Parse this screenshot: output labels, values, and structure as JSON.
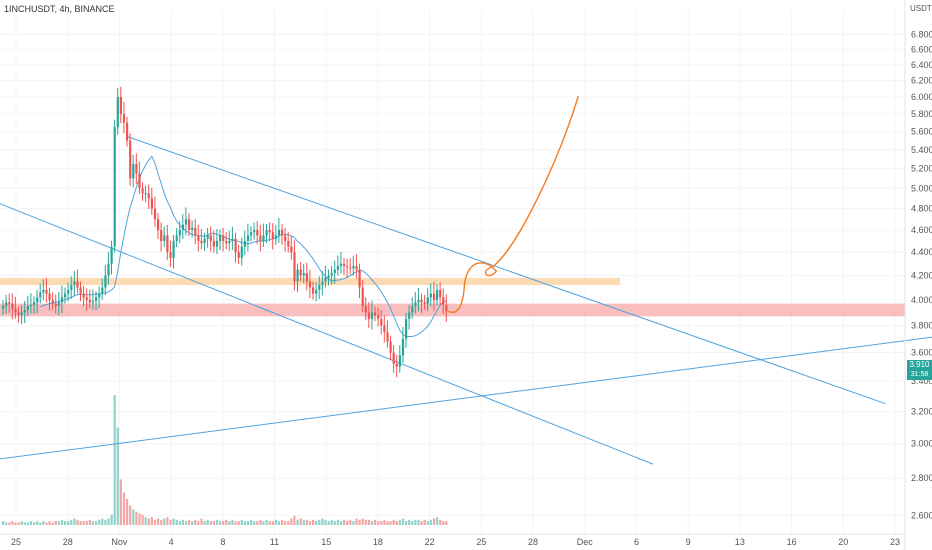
{
  "header": {
    "symbol_label": "1INCHUSDT, 4h, BINANCE",
    "currency": "USDT"
  },
  "price_tag": {
    "price": "3.910",
    "countdown": "31:58"
  },
  "colors": {
    "up": "#26a69a",
    "down": "#ef5350",
    "trendline": "#4fa3e0",
    "projection": "#f57c20",
    "resistance_zone": "#fbd3a6",
    "support_zone": "#f8b4b4",
    "ma": "#4fa3e0",
    "axis_text": "#555555"
  },
  "chart_data": {
    "type": "candlestick",
    "title": "1INCHUSDT, 4h, BINANCE",
    "ylabel": "USDT",
    "y_scale": "log",
    "ylim": [
      2.55,
      7.0
    ],
    "y_ticks": [
      "6.800",
      "6.600",
      "6.400",
      "6.200",
      "6.000",
      "5.800",
      "5.600",
      "5.400",
      "5.200",
      "5.000",
      "4.800",
      "4.600",
      "4.400",
      "4.200",
      "4.000",
      "3.800",
      "3.600",
      "3.400",
      "3.200",
      "3.000",
      "2.800",
      "2.600"
    ],
    "x_ticks": [
      "25",
      "28",
      "Nov",
      "4",
      "8",
      "11",
      "15",
      "18",
      "22",
      "25",
      "28",
      "Dec",
      "6",
      "9",
      "13",
      "16",
      "20",
      "23"
    ],
    "last_price": 3.91,
    "closes": [
      3.95,
      3.98,
      3.97,
      3.93,
      3.9,
      3.88,
      3.9,
      3.92,
      3.95,
      3.96,
      3.98,
      4.02,
      4.06,
      4.08,
      4.05,
      4.0,
      3.97,
      3.95,
      3.98,
      4.02,
      4.05,
      4.08,
      4.12,
      4.15,
      4.1,
      4.05,
      4.02,
      4.0,
      3.98,
      3.99,
      4.02,
      4.05,
      4.1,
      4.2,
      4.3,
      4.45,
      5.65,
      6.0,
      5.8,
      5.7,
      5.5,
      5.1,
      5.25,
      5.15,
      5.0,
      4.95,
      4.95,
      4.9,
      4.8,
      4.7,
      4.6,
      4.5,
      4.55,
      4.4,
      4.35,
      4.5,
      4.55,
      4.6,
      4.65,
      4.7,
      4.6,
      4.62,
      4.55,
      4.5,
      4.48,
      4.52,
      4.55,
      4.5,
      4.45,
      4.5,
      4.55,
      4.5,
      4.48,
      4.5,
      4.52,
      4.4,
      4.35,
      4.45,
      4.5,
      4.55,
      4.58,
      4.6,
      4.55,
      4.5,
      4.55,
      4.6,
      4.58,
      4.52,
      4.55,
      4.6,
      4.55,
      4.5,
      4.45,
      4.4,
      4.15,
      4.25,
      4.2,
      4.22,
      4.15,
      4.1,
      4.05,
      4.08,
      4.12,
      4.15,
      4.18,
      4.2,
      4.22,
      4.25,
      4.28,
      4.3,
      4.28,
      4.27,
      4.26,
      4.28,
      4.25,
      4.1,
      3.95,
      3.9,
      3.85,
      3.9,
      3.88,
      3.85,
      3.8,
      3.75,
      3.68,
      3.6,
      3.52,
      3.5,
      3.58,
      3.7,
      3.85,
      3.9,
      3.95,
      3.98,
      4.0,
      3.98,
      3.97,
      4.02,
      4.05,
      4.0,
      4.08,
      4.02,
      3.96,
      3.91
    ],
    "volumes": [
      0.03,
      0.02,
      0.02,
      0.03,
      0.02,
      0.02,
      0.03,
      0.02,
      0.02,
      0.03,
      0.02,
      0.03,
      0.02,
      0.03,
      0.02,
      0.03,
      0.02,
      0.03,
      0.03,
      0.04,
      0.03,
      0.03,
      0.04,
      0.05,
      0.04,
      0.03,
      0.03,
      0.03,
      0.04,
      0.03,
      0.03,
      0.04,
      0.05,
      0.04,
      0.05,
      0.08,
      1.0,
      0.75,
      0.35,
      0.25,
      0.2,
      0.15,
      0.12,
      0.1,
      0.09,
      0.08,
      0.06,
      0.05,
      0.06,
      0.04,
      0.05,
      0.04,
      0.05,
      0.06,
      0.04,
      0.05,
      0.04,
      0.03,
      0.04,
      0.03,
      0.04,
      0.03,
      0.04,
      0.03,
      0.05,
      0.03,
      0.04,
      0.03,
      0.03,
      0.04,
      0.03,
      0.03,
      0.04,
      0.03,
      0.04,
      0.03,
      0.03,
      0.04,
      0.03,
      0.03,
      0.04,
      0.03,
      0.03,
      0.04,
      0.03,
      0.04,
      0.03,
      0.03,
      0.04,
      0.03,
      0.04,
      0.03,
      0.03,
      0.05,
      0.07,
      0.04,
      0.05,
      0.04,
      0.04,
      0.03,
      0.04,
      0.03,
      0.04,
      0.05,
      0.04,
      0.03,
      0.04,
      0.03,
      0.04,
      0.03,
      0.04,
      0.03,
      0.04,
      0.03,
      0.05,
      0.04,
      0.05,
      0.04,
      0.04,
      0.03,
      0.04,
      0.03,
      0.03,
      0.04,
      0.03,
      0.03,
      0.04,
      0.03,
      0.04,
      0.05,
      0.03,
      0.04,
      0.03,
      0.04,
      0.04,
      0.03,
      0.04,
      0.03,
      0.04,
      0.05,
      0.06,
      0.04,
      0.03,
      0.03
    ],
    "zones": [
      {
        "name": "resistance",
        "price_low": 4.12,
        "price_high": 4.18
      },
      {
        "name": "support",
        "price_low": 3.87,
        "price_high": 3.97
      }
    ],
    "trendlines": [
      {
        "name": "channel-upper",
        "from": {
          "bar": 40,
          "price": 5.55
        },
        "to": {
          "bar": 285,
          "price": 3.25
        }
      },
      {
        "name": "channel-lower",
        "from": {
          "bar": -5,
          "price": 4.9
        },
        "to": {
          "bar": 210,
          "price": 2.88
        }
      },
      {
        "name": "rising-support",
        "from": {
          "bar": -5,
          "price": 2.9
        },
        "to": {
          "bar": 467,
          "price": 4.25
        }
      }
    ],
    "legend": "none",
    "grid": true
  }
}
